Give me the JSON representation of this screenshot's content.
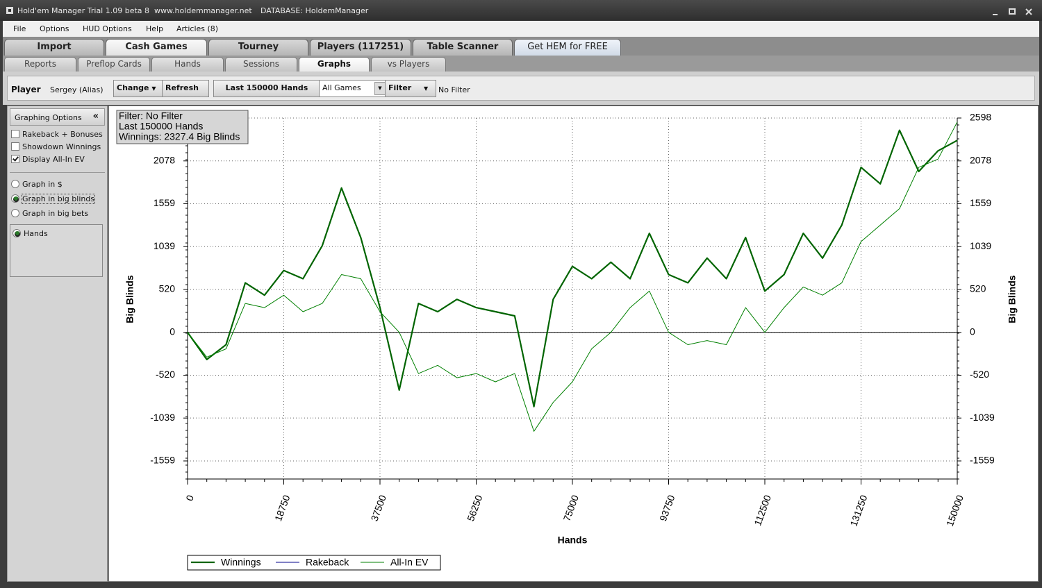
{
  "window": {
    "title": "Hold'em Manager Trial 1.09 beta 8",
    "url": "www.holdemmanager.net",
    "database": "DATABASE: HoldemManager"
  },
  "menu": [
    "File",
    "Options",
    "HUD Options",
    "Help",
    "Articles (8)"
  ],
  "tabs": [
    "Import",
    "Cash Games",
    "Tourney",
    "Players (117251)",
    "Table Scanner",
    "Get HEM for FREE"
  ],
  "subtabs": [
    "Reports",
    "Preflop Cards",
    "Hands",
    "Sessions",
    "Graphs",
    "vs Players"
  ],
  "toolbar": {
    "player_label": "Player",
    "player": "Sergey (Alias)",
    "change": "Change",
    "refresh": "Refresh",
    "hands": "Last 150000 Hands",
    "games": "All Games",
    "filter": "Filter",
    "filter_status": "No Filter"
  },
  "sidebar": {
    "title": "Graphing Options",
    "collapse": "«",
    "checkboxes": [
      {
        "label": "Rakeback + Bonuses",
        "checked": false
      },
      {
        "label": "Showdown Winnings",
        "checked": false
      },
      {
        "label": "Display All-In EV",
        "checked": true
      }
    ],
    "radios": [
      {
        "label": "Graph in $",
        "checked": false
      },
      {
        "label": "Graph in big blinds",
        "checked": true
      },
      {
        "label": "Graph in big bets",
        "checked": false
      }
    ],
    "axis_radio": {
      "label": "Hands",
      "checked": true
    }
  },
  "chart_data": {
    "type": "line",
    "annotations": [
      "Filter: No Filter",
      "Last 150000 Hands",
      "Winnings: 2327.4 Big Blinds"
    ],
    "x_label": "Hands",
    "y_label": "Big Blinds",
    "y2_label": "Big Blinds",
    "x": [
      0,
      3750,
      7500,
      11250,
      15000,
      18750,
      22500,
      26250,
      30000,
      33750,
      37500,
      41250,
      45000,
      48750,
      52500,
      56250,
      60000,
      63750,
      67500,
      71250,
      75000,
      78750,
      82500,
      86250,
      90000,
      93750,
      97500,
      101250,
      105000,
      108750,
      112500,
      116250,
      120000,
      123750,
      127500,
      131250,
      135000,
      138750,
      142500,
      146250,
      150000
    ],
    "series": [
      {
        "name": "Winnings",
        "color": "#006400",
        "width": 2.2,
        "values": [
          0,
          -330,
          -150,
          600,
          450,
          750,
          650,
          1050,
          1750,
          1150,
          300,
          -700,
          350,
          250,
          400,
          300,
          250,
          200,
          -900,
          400,
          800,
          650,
          850,
          650,
          1200,
          700,
          600,
          900,
          650,
          1150,
          500,
          700,
          1200,
          900,
          1300,
          2000,
          1800,
          2450,
          1950,
          2200,
          2327.4
        ]
      },
      {
        "name": "Rakeback",
        "color": "#00008b",
        "width": 1,
        "values": [
          null,
          null,
          null,
          null,
          null,
          null,
          null,
          null,
          null,
          null,
          null,
          null,
          null,
          null,
          null,
          null,
          null,
          null,
          null,
          null,
          null,
          null,
          null,
          null,
          null,
          null,
          null,
          null,
          null,
          null,
          null,
          null,
          null,
          null,
          null,
          null,
          null,
          null,
          null,
          null,
          null
        ]
      },
      {
        "name": "All-In EV",
        "color": "#008000",
        "width": 1,
        "values": [
          0,
          -300,
          -200,
          350,
          300,
          450,
          250,
          350,
          700,
          650,
          250,
          0,
          -500,
          -400,
          -550,
          -500,
          -600,
          -500,
          -1200,
          -850,
          -600,
          -200,
          0,
          300,
          500,
          0,
          -150,
          -100,
          -150,
          300,
          0,
          300,
          550,
          450,
          600,
          1100,
          1300,
          1500,
          2000,
          2100,
          2550
        ]
      }
    ],
    "xlim": [
      0,
      150000
    ],
    "xticks": [
      0,
      18750,
      37500,
      56250,
      75000,
      93750,
      112500,
      131250,
      150000
    ],
    "ylim": [
      -1778,
      2598
    ],
    "yticks": [
      -1559,
      -1039,
      -520,
      0,
      520,
      1039,
      1559,
      2078,
      2598
    ],
    "y2lim": [
      -1778,
      2598
    ],
    "y2ticks": [
      -1559,
      -1039,
      -520,
      0,
      520,
      1039,
      1559,
      2078,
      2598
    ],
    "grid": true
  }
}
